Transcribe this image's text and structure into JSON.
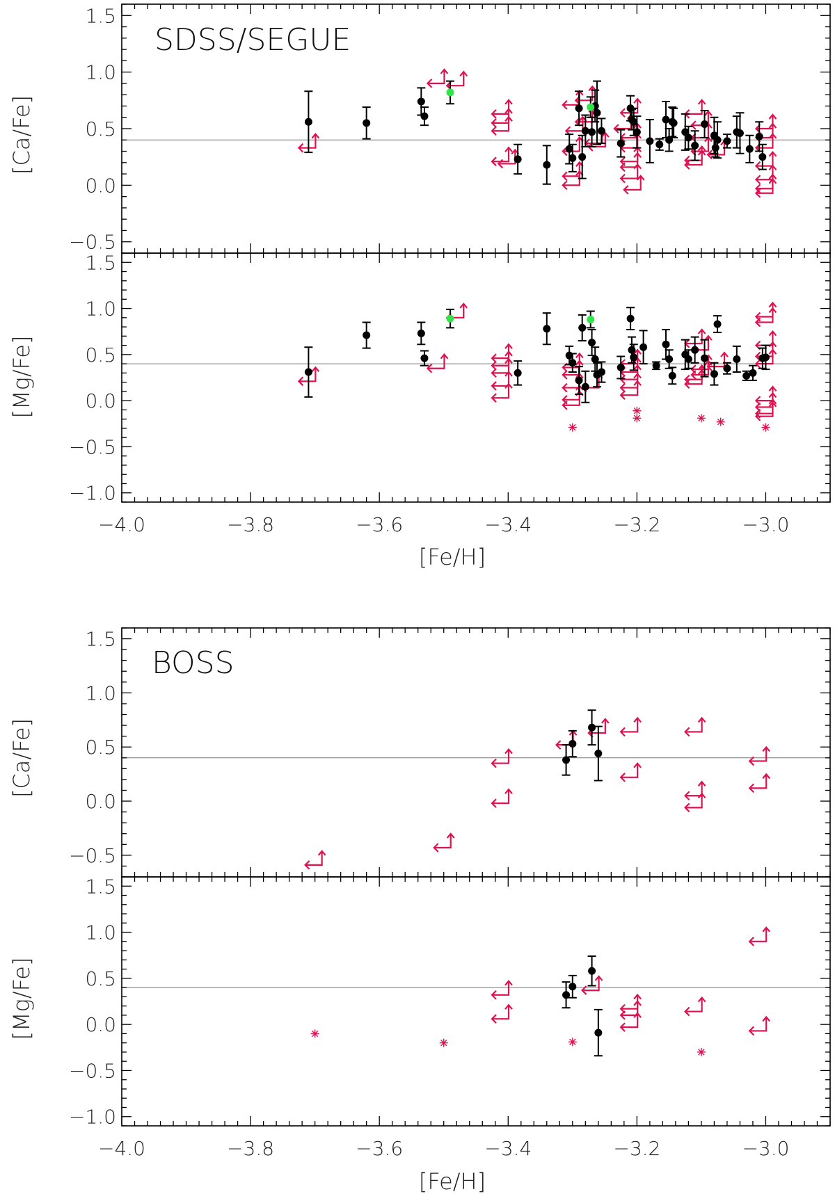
{
  "figure": {
    "x_label": "[Fe/H]",
    "x_ticks": [
      -4.0,
      -3.8,
      -3.6,
      -3.4,
      -3.2,
      -3.0
    ],
    "x_tick_labels": [
      "−4.0",
      "−3.8",
      "−3.6",
      "−3.4",
      "−3.2",
      "−3.0"
    ],
    "colors": {
      "detection": "#000000",
      "upper_limit": "#e0114f",
      "highlight": "#33e34a",
      "reference_line": "#777777"
    }
  },
  "chart_data": [
    {
      "type": "scatter",
      "title": "SDSS/SEGUE",
      "ylabel": "[Ca/Fe]",
      "xlabel": "",
      "xlim": [
        -4.0,
        -2.9
      ],
      "ylim": [
        -0.6,
        1.6
      ],
      "y_ticks": [
        -0.5,
        0.0,
        0.5,
        1.0,
        1.5
      ],
      "y_tick_labels": [
        "−0.5",
        "0.0",
        "0.5",
        "1.0",
        "1.5"
      ],
      "reference_y": 0.4,
      "points": [
        [
          -3.71,
          0.56,
          0.27
        ],
        [
          -3.62,
          0.55,
          0.14
        ],
        [
          -3.535,
          0.74,
          0.12
        ],
        [
          -3.53,
          0.61,
          0.08
        ],
        [
          -3.385,
          0.23,
          0.13
        ],
        [
          -3.34,
          0.18,
          0.17
        ],
        [
          -3.305,
          0.32,
          0.13
        ],
        [
          -3.3,
          0.24,
          0.12
        ],
        [
          -3.29,
          0.68,
          0.15
        ],
        [
          -3.285,
          0.25,
          0.19
        ],
        [
          -3.28,
          0.48,
          0.14
        ],
        [
          -3.27,
          0.47,
          0.13
        ],
        [
          -3.265,
          0.7,
          0.14
        ],
        [
          -3.262,
          0.64,
          0.28
        ],
        [
          -3.255,
          0.48,
          0.11
        ],
        [
          -3.225,
          0.37,
          0.12
        ],
        [
          -3.21,
          0.68,
          0.11
        ],
        [
          -3.208,
          0.58,
          0.09
        ],
        [
          -3.205,
          0.56,
          0.12
        ],
        [
          -3.2,
          0.47,
          0.14
        ],
        [
          -3.18,
          0.39,
          0.19
        ],
        [
          -3.165,
          0.36,
          0.05
        ],
        [
          -3.155,
          0.58,
          0.16
        ],
        [
          -3.15,
          0.4,
          0.1
        ],
        [
          -3.145,
          0.56,
          0.13
        ],
        [
          -3.143,
          0.55,
          0.13
        ],
        [
          -3.125,
          0.47,
          0.16
        ],
        [
          -3.12,
          0.42,
          0.1
        ],
        [
          -3.11,
          0.35,
          0.13
        ],
        [
          -3.095,
          0.54,
          0.12
        ],
        [
          -3.08,
          0.44,
          0.16
        ],
        [
          -3.078,
          0.33,
          0.08
        ],
        [
          -3.075,
          0.4,
          0.16
        ],
        [
          -3.06,
          0.39,
          0.06
        ],
        [
          -3.045,
          0.47,
          0.14
        ],
        [
          -3.04,
          0.46,
          0.18
        ],
        [
          -3.025,
          0.32,
          0.12
        ],
        [
          -3.01,
          0.43,
          0.13
        ],
        [
          -3.005,
          0.25,
          0.11
        ]
      ],
      "highlight_points": [
        [
          -3.49,
          0.82,
          0.1
        ],
        [
          -3.272,
          0.69,
          0.09
        ]
      ],
      "upper_limits": [
        [
          -3.71,
          0.33
        ],
        [
          -3.51,
          0.9
        ],
        [
          -3.48,
          0.88
        ],
        [
          -3.41,
          0.63
        ],
        [
          -3.41,
          0.55
        ],
        [
          -3.41,
          0.48
        ],
        [
          -3.41,
          0.21
        ],
        [
          -3.4,
          0.19
        ],
        [
          -3.3,
          0.71
        ],
        [
          -3.295,
          0.48
        ],
        [
          -3.3,
          0.3
        ],
        [
          -3.3,
          0.08
        ],
        [
          -3.3,
          0.0
        ],
        [
          -3.28,
          0.75
        ],
        [
          -3.28,
          0.56
        ],
        [
          -3.265,
          0.37
        ],
        [
          -3.26,
          0.34
        ],
        [
          -3.21,
          0.64
        ],
        [
          -3.22,
          0.5
        ],
        [
          -3.21,
          0.42
        ],
        [
          -3.21,
          0.33
        ],
        [
          -3.21,
          0.21
        ],
        [
          -3.21,
          0.16
        ],
        [
          -3.21,
          0.06
        ],
        [
          -3.205,
          -0.04
        ],
        [
          -3.11,
          0.63
        ],
        [
          -3.1,
          0.53
        ],
        [
          -3.1,
          0.42
        ],
        [
          -3.1,
          0.3
        ],
        [
          -3.11,
          0.22
        ],
        [
          -3.11,
          0.18
        ],
        [
          -3.075,
          0.27
        ],
        [
          -3.0,
          0.5
        ],
        [
          -3.0,
          0.42
        ],
        [
          -3.0,
          0.33
        ],
        [
          -3.0,
          0.17
        ],
        [
          -3.0,
          0.05
        ],
        [
          -3.0,
          -0.03
        ],
        [
          -3.0,
          -0.07
        ]
      ]
    },
    {
      "type": "scatter",
      "title": "",
      "ylabel": "[Mg/Fe]",
      "xlabel": "[Fe/H]",
      "xlim": [
        -4.0,
        -2.9
      ],
      "ylim": [
        -1.1,
        1.6
      ],
      "y_ticks": [
        -1.0,
        -0.5,
        0.0,
        0.5,
        1.0,
        1.5
      ],
      "y_tick_labels": [
        "−1.0",
        "−0.5",
        "0.0",
        "0.5",
        "1.0",
        "1.5"
      ],
      "reference_y": 0.4,
      "points": [
        [
          -3.71,
          0.31,
          0.27
        ],
        [
          -3.62,
          0.71,
          0.14
        ],
        [
          -3.535,
          0.73,
          0.12
        ],
        [
          -3.53,
          0.46,
          0.08
        ],
        [
          -3.385,
          0.3,
          0.13
        ],
        [
          -3.34,
          0.78,
          0.17
        ],
        [
          -3.305,
          0.49,
          0.1
        ],
        [
          -3.3,
          0.41,
          0.1
        ],
        [
          -3.29,
          0.22,
          0.15
        ],
        [
          -3.285,
          0.79,
          0.14
        ],
        [
          -3.28,
          0.15,
          0.17
        ],
        [
          -3.27,
          0.63,
          0.14
        ],
        [
          -3.265,
          0.45,
          0.13
        ],
        [
          -3.262,
          0.28,
          0.13
        ],
        [
          -3.255,
          0.31,
          0.11
        ],
        [
          -3.225,
          0.36,
          0.12
        ],
        [
          -3.21,
          0.89,
          0.12
        ],
        [
          -3.208,
          0.55,
          0.14
        ],
        [
          -3.205,
          0.47,
          0.14
        ],
        [
          -3.19,
          0.58,
          0.18
        ],
        [
          -3.17,
          0.38,
          0.04
        ],
        [
          -3.155,
          0.61,
          0.16
        ],
        [
          -3.15,
          0.45,
          0.1
        ],
        [
          -3.145,
          0.27,
          0.09
        ],
        [
          -3.125,
          0.5,
          0.16
        ],
        [
          -3.12,
          0.45,
          0.1
        ],
        [
          -3.11,
          0.55,
          0.14
        ],
        [
          -3.095,
          0.46,
          0.2
        ],
        [
          -3.08,
          0.29,
          0.12
        ],
        [
          -3.075,
          0.83,
          0.09
        ],
        [
          -3.06,
          0.35,
          0.06
        ],
        [
          -3.045,
          0.45,
          0.14
        ],
        [
          -3.03,
          0.27,
          0.05
        ],
        [
          -3.02,
          0.3,
          0.08
        ],
        [
          -3.005,
          0.46,
          0.11
        ],
        [
          -3.0,
          0.47,
          0.13
        ]
      ],
      "highlight_points": [
        [
          -3.49,
          0.89,
          0.1
        ],
        [
          -3.272,
          0.88,
          0.09
        ]
      ],
      "upper_limits": [
        [
          -3.71,
          0.21
        ],
        [
          -3.48,
          0.9
        ],
        [
          -3.51,
          0.35
        ],
        [
          -3.41,
          0.46
        ],
        [
          -3.41,
          0.38
        ],
        [
          -3.41,
          0.3
        ],
        [
          -3.41,
          0.16
        ],
        [
          -3.41,
          0.03
        ],
        [
          -3.3,
          0.36
        ],
        [
          -3.3,
          0.28
        ],
        [
          -3.3,
          0.14
        ],
        [
          -3.3,
          0.01
        ],
        [
          -3.3,
          -0.05
        ],
        [
          -3.27,
          0.14
        ],
        [
          -3.21,
          0.4
        ],
        [
          -3.21,
          0.31
        ],
        [
          -3.21,
          0.23
        ],
        [
          -3.21,
          0.14
        ],
        [
          -3.21,
          0.06
        ],
        [
          -3.11,
          0.62
        ],
        [
          -3.1,
          0.55
        ],
        [
          -3.1,
          0.34
        ],
        [
          -3.1,
          0.28
        ],
        [
          -3.11,
          0.23
        ],
        [
          -3.11,
          0.18
        ],
        [
          -3.075,
          0.37
        ],
        [
          -3.0,
          0.91
        ],
        [
          -3.0,
          0.85
        ],
        [
          -3.0,
          0.6
        ],
        [
          -3.0,
          0.48
        ],
        [
          -3.0,
          0.4
        ],
        [
          -3.0,
          0.0
        ],
        [
          -3.0,
          -0.07
        ],
        [
          -3.0,
          -0.14
        ],
        [
          -3.0,
          -0.17
        ]
      ],
      "detections_marked_asterisk": [
        [
          -3.3,
          -0.29
        ],
        [
          -3.2,
          -0.11
        ],
        [
          -3.2,
          -0.19
        ],
        [
          -3.1,
          -0.19
        ],
        [
          -3.07,
          -0.23
        ],
        [
          -3.0,
          -0.29
        ]
      ]
    },
    {
      "type": "scatter",
      "title": "BOSS",
      "ylabel": "[Ca/Fe]",
      "xlabel": "",
      "xlim": [
        -4.0,
        -2.9
      ],
      "ylim": [
        -0.7,
        1.6
      ],
      "y_ticks": [
        -0.5,
        0.0,
        0.5,
        1.0,
        1.5
      ],
      "y_tick_labels": [
        "−0.5",
        "0.0",
        "0.5",
        "1.0",
        "1.5"
      ],
      "reference_y": 0.4,
      "points": [
        [
          -3.31,
          0.38,
          0.14
        ],
        [
          -3.3,
          0.53,
          0.12
        ],
        [
          -3.27,
          0.68,
          0.16
        ],
        [
          -3.26,
          0.44,
          0.25
        ]
      ],
      "highlight_points": [],
      "upper_limits": [
        [
          -3.7,
          -0.59
        ],
        [
          -3.5,
          -0.43
        ],
        [
          -3.41,
          0.35
        ],
        [
          -3.41,
          -0.02
        ],
        [
          -3.31,
          0.52
        ],
        [
          -3.26,
          0.63
        ],
        [
          -3.21,
          0.64
        ],
        [
          -3.21,
          0.22
        ],
        [
          -3.11,
          0.64
        ],
        [
          -3.11,
          0.05
        ],
        [
          -3.11,
          -0.06
        ],
        [
          -3.01,
          0.37
        ],
        [
          -3.01,
          0.12
        ]
      ]
    },
    {
      "type": "scatter",
      "title": "",
      "ylabel": "[Mg/Fe]",
      "xlabel": "[Fe/H]",
      "xlim": [
        -4.0,
        -2.9
      ],
      "ylim": [
        -1.1,
        1.6
      ],
      "y_ticks": [
        -1.0,
        -0.5,
        0.0,
        0.5,
        1.0,
        1.5
      ],
      "y_tick_labels": [
        "−1.0",
        "−0.5",
        "0.0",
        "0.5",
        "1.0",
        "1.5"
      ],
      "reference_y": 0.4,
      "points": [
        [
          -3.31,
          0.32,
          0.14
        ],
        [
          -3.3,
          0.41,
          0.12
        ],
        [
          -3.27,
          0.58,
          0.16
        ],
        [
          -3.26,
          -0.09,
          0.25
        ]
      ],
      "highlight_points": [],
      "upper_limits": [
        [
          -3.41,
          0.32
        ],
        [
          -3.41,
          0.06
        ],
        [
          -3.27,
          0.37
        ],
        [
          -3.21,
          0.17
        ],
        [
          -3.21,
          0.1
        ],
        [
          -3.21,
          -0.03
        ],
        [
          -3.11,
          0.14
        ],
        [
          -3.01,
          0.9
        ],
        [
          -3.01,
          -0.07
        ]
      ],
      "detections_marked_asterisk": [
        [
          -3.7,
          -0.1
        ],
        [
          -3.5,
          -0.2
        ],
        [
          -3.3,
          -0.19
        ],
        [
          -3.1,
          -0.3
        ]
      ]
    }
  ]
}
